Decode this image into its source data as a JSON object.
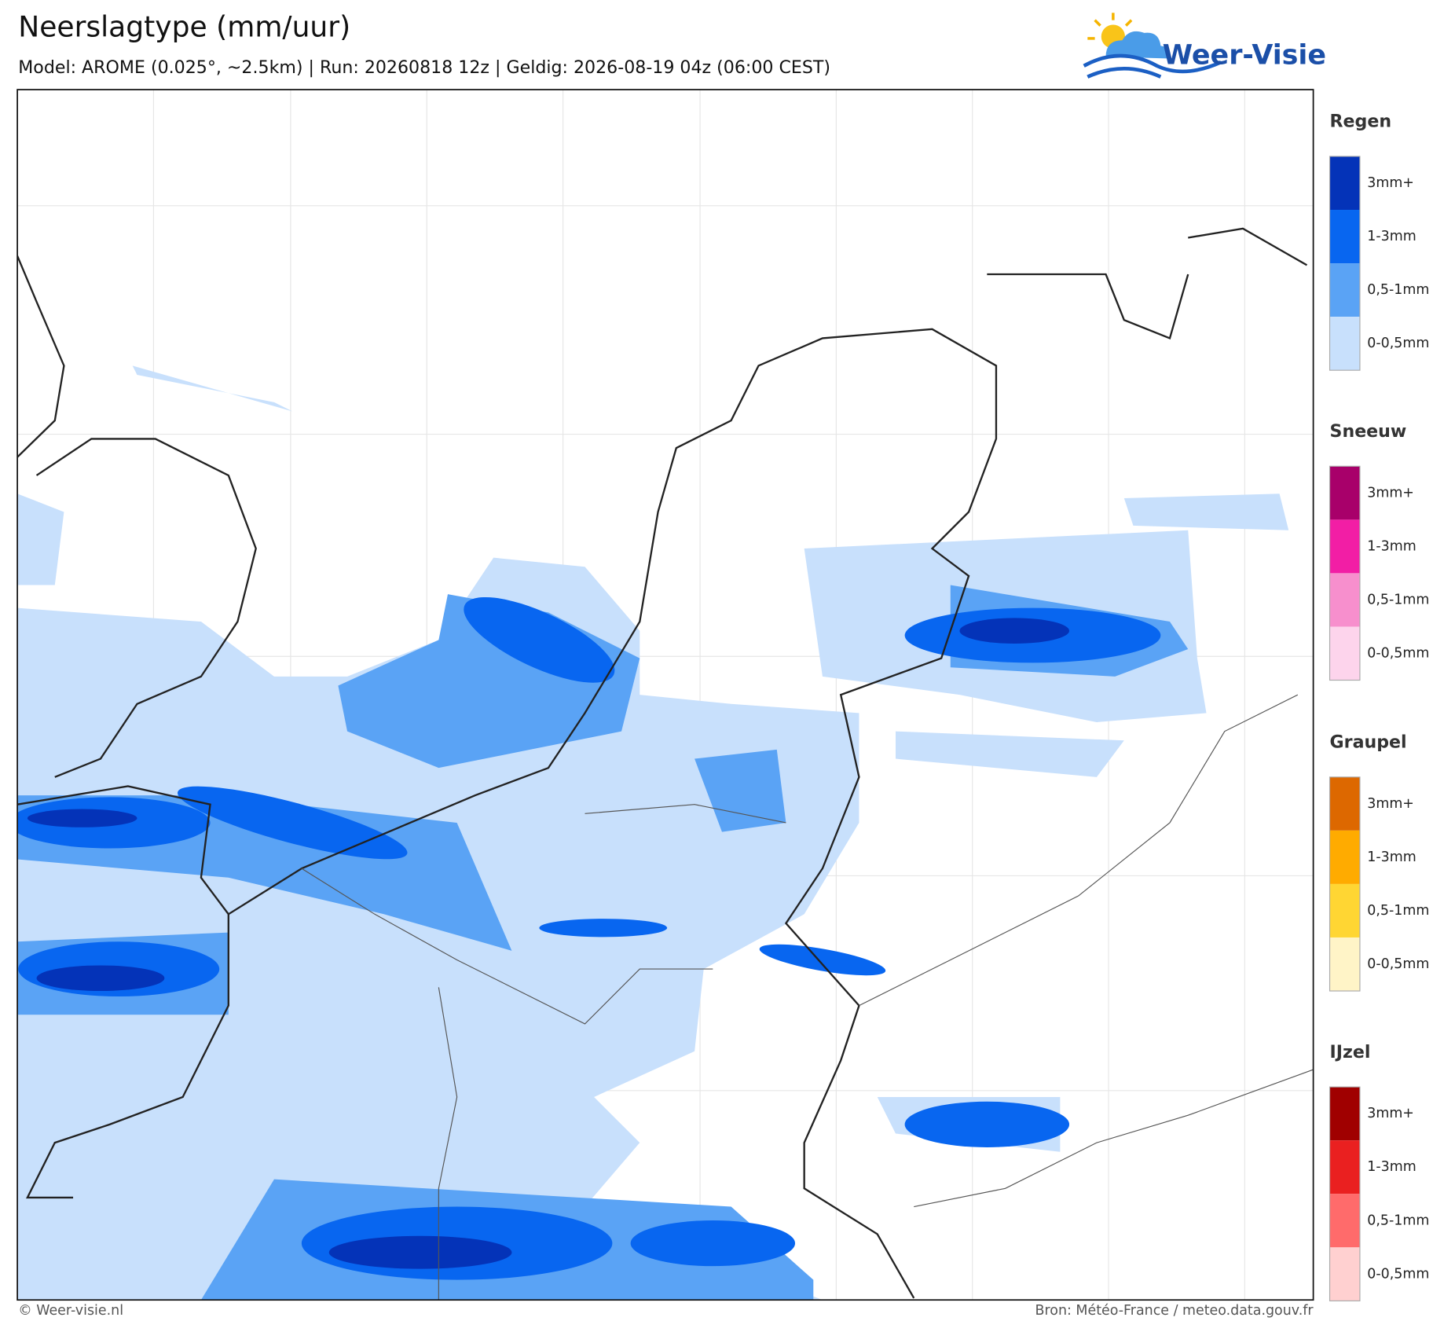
{
  "header": {
    "title": "Neerslagtype (mm/uur)",
    "subtitle": "Model: AROME (0.025°, ~2.5km)  |  Run: 20260818 12z  |  Geldig: 2026-08-19 04z (06:00 CEST)"
  },
  "logo": {
    "text": "Weer-Visie"
  },
  "legend": [
    {
      "title": "Regen",
      "items": [
        "3mm+",
        "1-3mm",
        "0,5-1mm",
        "0-0,5mm"
      ],
      "colors": [
        "#0433b8",
        "#0866f0",
        "#5aa3f5",
        "#c8e0fc"
      ]
    },
    {
      "title": "Sneeuw",
      "items": [
        "3mm+",
        "1-3mm",
        "0,5-1mm",
        "0-0,5mm"
      ],
      "colors": [
        "#a8006a",
        "#f21ea5",
        "#f78fcd",
        "#fdd4ec"
      ]
    },
    {
      "title": "Graupel",
      "items": [
        "3mm+",
        "1-3mm",
        "0,5-1mm",
        "0-0,5mm"
      ],
      "colors": [
        "#dd6800",
        "#ffab00",
        "#ffd633",
        "#fff4c7"
      ]
    },
    {
      "title": "IJzel",
      "items": [
        "3mm+",
        "1-3mm",
        "0,5-1mm",
        "0-0,5mm"
      ],
      "colors": [
        "#a00000",
        "#ea2020",
        "#ff6b6b",
        "#ffd0d0"
      ]
    }
  ],
  "footer": {
    "left": "© Weer-visie.nl",
    "right": "Bron: Météo-France / meteo.data.gouv.fr"
  }
}
